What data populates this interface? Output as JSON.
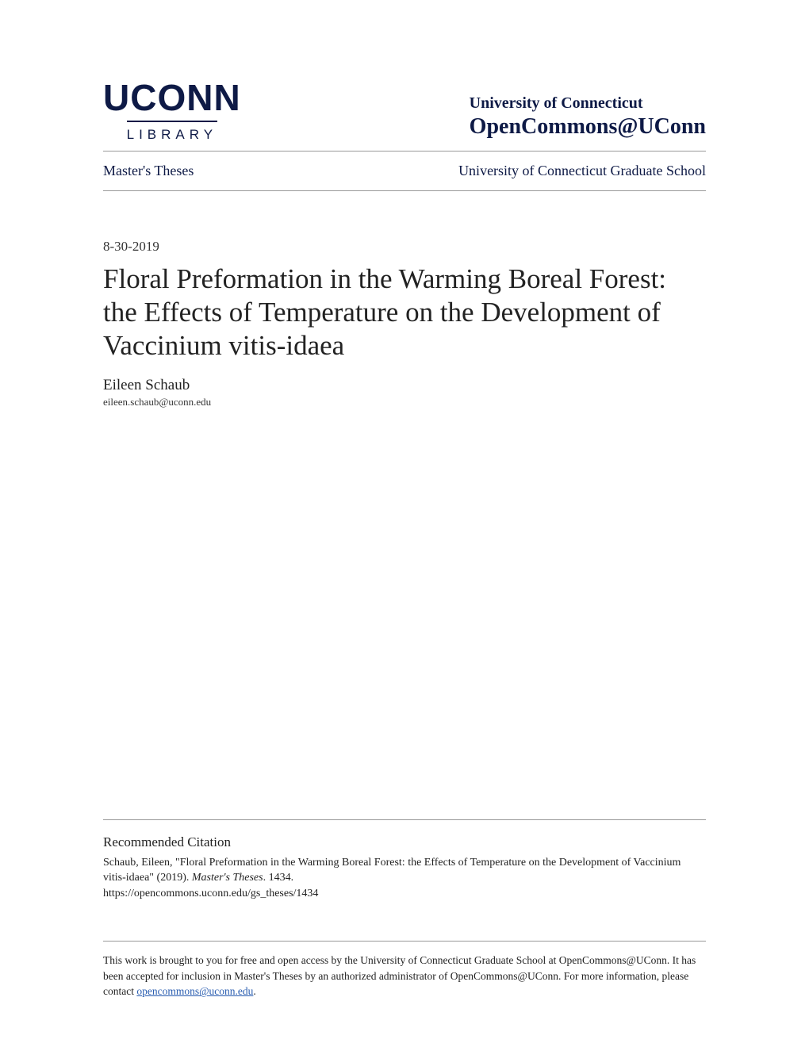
{
  "logo": {
    "main": "UCONN",
    "sub": "LIBRARY"
  },
  "header": {
    "university": "University of Connecticut",
    "repository": "OpenCommons@UConn"
  },
  "breadcrumb": {
    "left": "Master's Theses",
    "right": "University of Connecticut Graduate School"
  },
  "document": {
    "date": "8-30-2019",
    "title": "Floral Preformation in the Warming Boreal Forest: the Effects of Temperature on the Development of Vaccinium vitis-idaea",
    "author": "Eileen Schaub",
    "email": "eileen.schaub@uconn.edu"
  },
  "citation": {
    "heading": "Recommended Citation",
    "text_before_italic": "Schaub, Eileen, \"Floral Preformation in the Warming Boreal Forest: the Effects of Temperature on the Development of Vaccinium vitis-idaea\" (2019). ",
    "italic": "Master's Theses",
    "text_after_italic": ". 1434.",
    "url": "https://opencommons.uconn.edu/gs_theses/1434"
  },
  "access": {
    "text": "This work is brought to you for free and open access by the University of Connecticut Graduate School at OpenCommons@UConn. It has been accepted for inclusion in Master's Theses by an authorized administrator of OpenCommons@UConn. For more information, please contact ",
    "link": "opencommons@uconn.edu",
    "suffix": "."
  },
  "colors": {
    "primary": "#0e1a46",
    "text": "#222222",
    "border": "#999999",
    "link": "#2a5db0",
    "background": "#ffffff"
  }
}
